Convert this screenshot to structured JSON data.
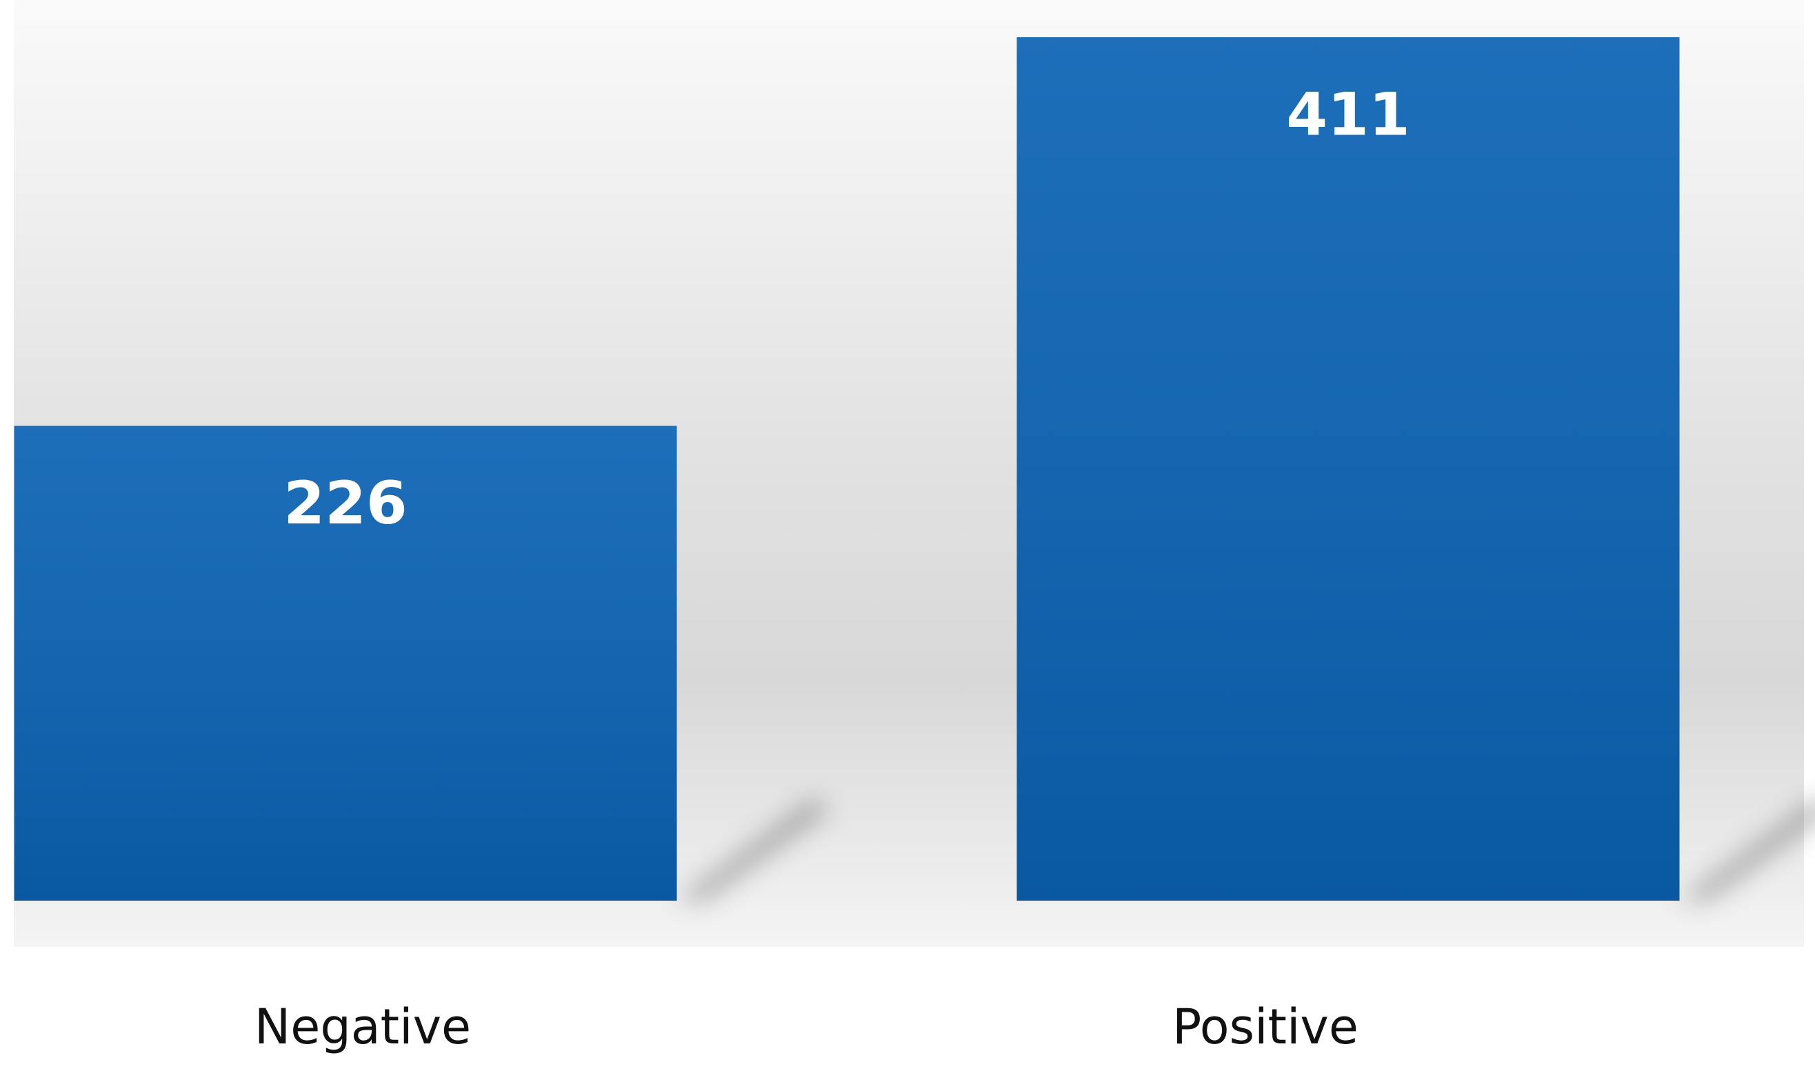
{
  "chart_data": {
    "type": "bar",
    "categories": [
      "Negative",
      "Positive"
    ],
    "values": [
      226,
      411
    ],
    "color": "#0a62b4"
  }
}
